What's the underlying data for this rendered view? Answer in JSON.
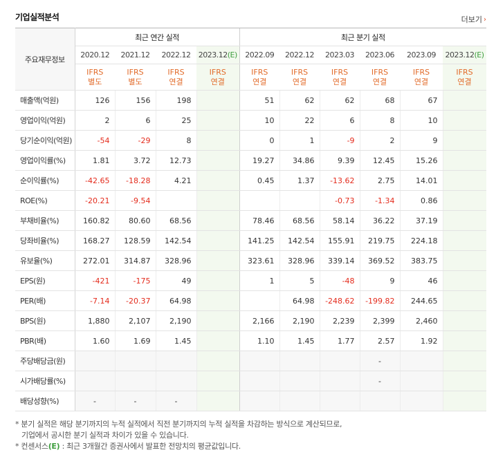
{
  "title": "기업실적분석",
  "more_label": "더보기",
  "header": {
    "label_col": "주요재무정보",
    "annual_group": "최근 연간 실적",
    "quarter_group": "최근 분기 실적",
    "periods": [
      "2020.12",
      "2021.12",
      "2022.12",
      "2023.12",
      "2022.09",
      "2022.12",
      "2023.03",
      "2023.06",
      "2023.09",
      "2023.12"
    ],
    "estimate_suffix": "(E)",
    "accounting": [
      [
        "IFRS",
        "별도"
      ],
      [
        "IFRS",
        "별도"
      ],
      [
        "IFRS",
        "연결"
      ],
      [
        "IFRS",
        "연결"
      ],
      [
        "IFRS",
        "연결"
      ],
      [
        "IFRS",
        "연결"
      ],
      [
        "IFRS",
        "연결"
      ],
      [
        "IFRS",
        "연결"
      ],
      [
        "IFRS",
        "연결"
      ],
      [
        "IFRS",
        "연결"
      ]
    ]
  },
  "rows": [
    {
      "label": "매출액(억원)",
      "values": [
        "126",
        "156",
        "198",
        "",
        "51",
        "62",
        "62",
        "68",
        "67",
        ""
      ]
    },
    {
      "label": "영업이익(억원)",
      "values": [
        "2",
        "6",
        "25",
        "",
        "10",
        "22",
        "6",
        "8",
        "10",
        ""
      ]
    },
    {
      "label": "당기순이익(억원)",
      "values": [
        "-54",
        "-29",
        "8",
        "",
        "0",
        "1",
        "-9",
        "2",
        "9",
        ""
      ]
    },
    {
      "label": "영업이익률(%)",
      "values": [
        "1.81",
        "3.72",
        "12.73",
        "",
        "19.27",
        "34.86",
        "9.39",
        "12.45",
        "15.26",
        ""
      ]
    },
    {
      "label": "순이익률(%)",
      "values": [
        "-42.65",
        "-18.28",
        "4.21",
        "",
        "0.45",
        "1.37",
        "-13.62",
        "2.75",
        "14.01",
        ""
      ]
    },
    {
      "label": "ROE(%)",
      "values": [
        "-20.21",
        "-9.54",
        "",
        "",
        "",
        "",
        "-0.73",
        "-1.34",
        "0.86",
        ""
      ]
    },
    {
      "label": "부채비율(%)",
      "values": [
        "160.82",
        "80.60",
        "68.56",
        "",
        "78.46",
        "68.56",
        "58.14",
        "36.22",
        "37.19",
        ""
      ]
    },
    {
      "label": "당좌비율(%)",
      "values": [
        "168.27",
        "128.59",
        "142.54",
        "",
        "141.25",
        "142.54",
        "155.91",
        "219.75",
        "224.18",
        ""
      ]
    },
    {
      "label": "유보율(%)",
      "values": [
        "272.01",
        "314.87",
        "328.96",
        "",
        "323.61",
        "328.96",
        "339.14",
        "369.52",
        "383.75",
        ""
      ]
    },
    {
      "label": "EPS(원)",
      "values": [
        "-421",
        "-175",
        "49",
        "",
        "1",
        "5",
        "-48",
        "9",
        "46",
        ""
      ]
    },
    {
      "label": "PER(배)",
      "values": [
        "-7.14",
        "-20.37",
        "64.98",
        "",
        "",
        "64.98",
        "-248.62",
        "-199.82",
        "244.65",
        ""
      ]
    },
    {
      "label": "BPS(원)",
      "values": [
        "1,880",
        "2,107",
        "2,190",
        "",
        "2,166",
        "2,190",
        "2,239",
        "2,399",
        "2,460",
        ""
      ]
    },
    {
      "label": "PBR(배)",
      "values": [
        "1.60",
        "1.69",
        "1.45",
        "",
        "1.10",
        "1.45",
        "1.77",
        "2.57",
        "1.92",
        ""
      ]
    },
    {
      "label": "주당배당금(원)",
      "values": [
        "",
        "",
        "",
        "",
        "",
        "",
        "",
        "-",
        "",
        ""
      ]
    },
    {
      "label": "시가배당률(%)",
      "values": [
        "",
        "",
        "",
        "",
        "",
        "",
        "",
        "-",
        "",
        ""
      ]
    },
    {
      "label": "배당성향(%)",
      "values": [
        "-",
        "-",
        "-",
        "",
        "",
        "",
        "",
        "",
        "",
        ""
      ]
    }
  ],
  "notes": {
    "line1": "분기 실적은 해당 분기까지의 누적 실적에서 직전 분기까지의 누적 실적을 차감하는 방식으로 계산되므로,",
    "line2": "기업에서 공시한 분기 실적과 차이가 있을 수 있습니다.",
    "line3_prefix": "컨센서스",
    "line3_e": "(E)",
    "line3_rest": ": 최근 3개월간 증권사에서 발표한 전망치의 평균값입니다."
  }
}
